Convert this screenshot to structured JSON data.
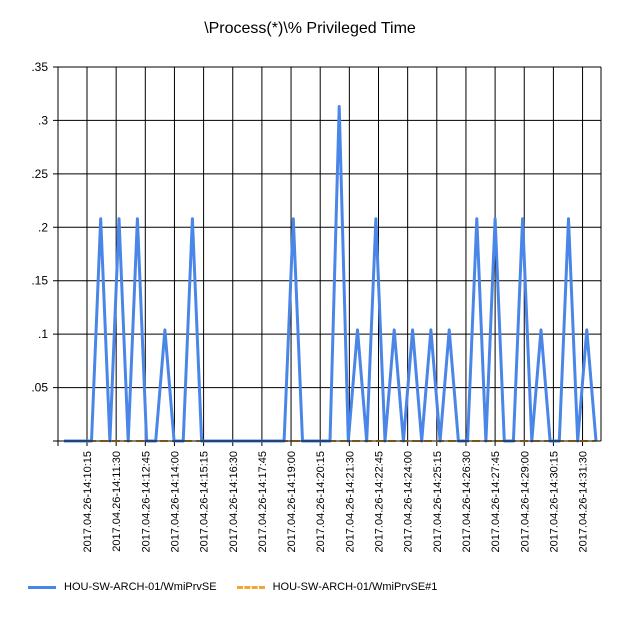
{
  "chart_data": {
    "type": "line",
    "title": "\\Process(*)\\% Privileged Time",
    "xlabel": "",
    "ylabel": "",
    "ylim": [
      0,
      0.35
    ],
    "y_ticks": [
      {
        "value": 0.35,
        "label": ".35"
      },
      {
        "value": 0.3,
        "label": ".3"
      },
      {
        "value": 0.25,
        "label": ".25"
      },
      {
        "value": 0.2,
        "label": ".2"
      },
      {
        "value": 0.15,
        "label": ".15"
      },
      {
        "value": 0.1,
        "label": ".1"
      },
      {
        "value": 0.05,
        "label": ".05"
      },
      {
        "value": 0,
        "label": ""
      }
    ],
    "x_tick_labels": [
      "2017.04.26-14:10:15",
      "2017.04.26-14:11:30",
      "2017.04.26-14:12:45",
      "2017.04.26-14:14:00",
      "2017.04.26-14:15:15",
      "2017.04.26-14:16:30",
      "2017.04.26-14:17:45",
      "2017.04.26-14:19:00",
      "2017.04.26-14:20:15",
      "2017.04.26-14:21:30",
      "2017.04.26-14:22:45",
      "2017.04.26-14:24:00",
      "2017.04.26-14:25:15",
      "2017.04.26-14:26:30",
      "2017.04.26-14:27:45",
      "2017.04.26-14:29:00",
      "2017.04.26-14:30:15",
      "2017.04.26-14:31:30"
    ],
    "series": [
      {
        "name": "HOU-SW-ARCH-01/WmiPrvSE",
        "color": "#4a86e8",
        "dashed": false,
        "values": [
          0,
          0,
          0,
          0,
          0.208,
          0,
          0.208,
          0,
          0.208,
          0,
          0,
          0.104,
          0,
          0,
          0.208,
          0,
          0,
          0,
          0,
          0,
          0,
          0,
          0,
          0,
          0,
          0.208,
          0,
          0,
          0,
          0,
          0.313,
          0,
          0.104,
          0,
          0.208,
          0,
          0.104,
          0,
          0.104,
          0,
          0.104,
          0,
          0.104,
          0,
          0,
          0.208,
          0,
          0.208,
          0,
          0,
          0.208,
          0,
          0.104,
          0,
          0,
          0.208,
          0,
          0.104,
          0
        ]
      },
      {
        "name": "HOU-SW-ARCH-01/WmiPrvSE#1",
        "color": "#f0a830",
        "dashed": true,
        "values": [
          0,
          0,
          0,
          0,
          0,
          0,
          0,
          0,
          0,
          0,
          0,
          0,
          0,
          0,
          0,
          0,
          0,
          0,
          0,
          0,
          0,
          0,
          0,
          0,
          0,
          0,
          0,
          0,
          0,
          0,
          0,
          0,
          0,
          0,
          0,
          0,
          0,
          0,
          0,
          0,
          0,
          0,
          0,
          0,
          0,
          0,
          0,
          0,
          0,
          0,
          0,
          0,
          0,
          0,
          0,
          0,
          0,
          0,
          0
        ]
      }
    ],
    "legend_position": "bottom-left",
    "grid": true
  }
}
